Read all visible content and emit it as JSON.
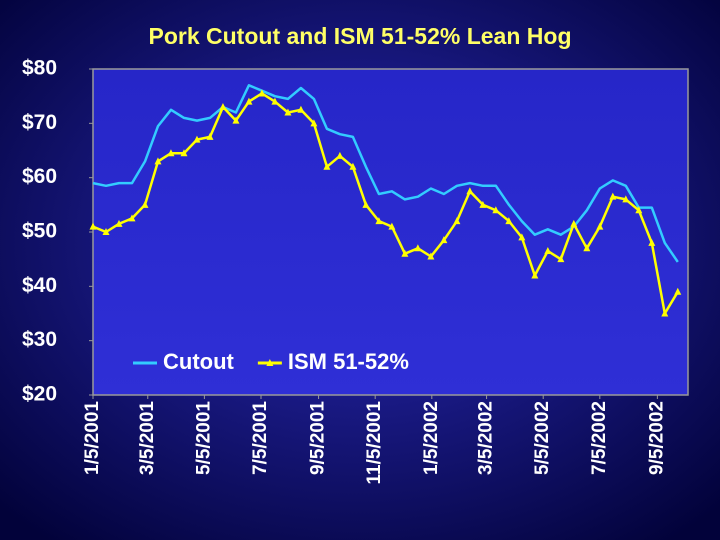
{
  "chart_data": {
    "type": "line",
    "title": "Pork Cutout and ISM 51-52% Lean Hog",
    "x": [
      "1/5/2001",
      "1/19/2001",
      "2/2/2001",
      "2/16/2001",
      "3/2/2001",
      "3/16/2001",
      "3/30/2001",
      "4/13/2001",
      "4/27/2001",
      "5/11/2001",
      "5/25/2001",
      "6/8/2001",
      "6/22/2001",
      "7/6/2001",
      "7/20/2001",
      "8/3/2001",
      "8/17/2001",
      "8/31/2001",
      "9/14/2001",
      "9/28/2001",
      "10/12/2001",
      "10/26/2001",
      "11/9/2001",
      "11/23/2001",
      "12/7/2001",
      "12/21/2001",
      "1/4/2002",
      "1/18/2002",
      "2/1/2002",
      "2/15/2002",
      "3/1/2002",
      "3/15/2002",
      "3/29/2002",
      "4/12/2002",
      "4/26/2002",
      "5/10/2002",
      "5/24/2002",
      "6/7/2002",
      "6/21/2002",
      "7/5/2002",
      "7/19/2002",
      "8/2/2002",
      "8/16/2002",
      "8/30/2002",
      "9/13/2002",
      "9/27/2002"
    ],
    "series": [
      {
        "name": "Cutout",
        "color": "#33ccff",
        "marker": "none",
        "values": [
          59,
          58.5,
          59,
          59,
          63,
          69.5,
          72.5,
          71,
          70.5,
          71,
          73,
          72,
          77,
          76,
          75,
          74.5,
          76.5,
          74.5,
          69,
          68,
          67.5,
          62,
          57,
          57.5,
          56,
          56.5,
          58,
          57,
          58.5,
          59,
          58.5,
          58.5,
          55,
          52,
          49.5,
          50.5,
          49.5,
          51,
          54,
          58,
          59.5,
          58.5,
          54.5,
          54.5,
          48,
          44.5
        ]
      },
      {
        "name": "ISM 51-52%",
        "color": "#ffff00",
        "marker": "triangle",
        "values": [
          51,
          50,
          51.5,
          52.5,
          55,
          63,
          64.5,
          64.5,
          67,
          67.5,
          73,
          70.5,
          74,
          75.5,
          74,
          72,
          72.5,
          70,
          62,
          64,
          62,
          55,
          52,
          51,
          46,
          47,
          45.5,
          48.5,
          52,
          57.5,
          55,
          54,
          52,
          49,
          42,
          46.5,
          45,
          51.5,
          47,
          51,
          56.5,
          56,
          54,
          48,
          35,
          39
        ]
      }
    ],
    "xlim": [
      "1/5/2001",
      "10/8/2002"
    ],
    "xticks": [
      "1/5/2001",
      "3/5/2001",
      "5/5/2001",
      "7/5/2001",
      "9/5/2001",
      "11/5/2001",
      "1/5/2002",
      "3/5/2002",
      "5/5/2002",
      "7/5/2002",
      "9/5/2002"
    ],
    "ylim": [
      20,
      80
    ],
    "yticks": [
      {
        "value": 20,
        "label": "$20"
      },
      {
        "value": 30,
        "label": "$30"
      },
      {
        "value": 40,
        "label": "$40"
      },
      {
        "value": 50,
        "label": "$50"
      },
      {
        "value": 60,
        "label": "$60"
      },
      {
        "value": 70,
        "label": "$70"
      },
      {
        "value": 80,
        "label": "$80"
      }
    ],
    "legend": "inside-bottom-left"
  }
}
